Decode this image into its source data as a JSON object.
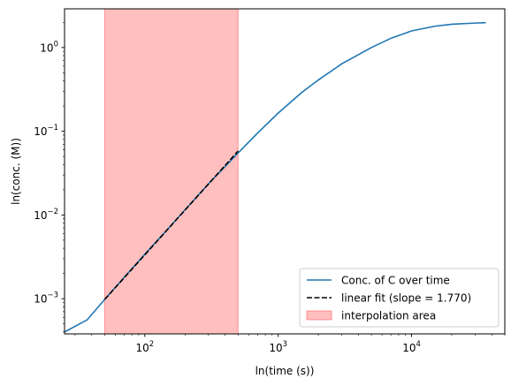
{
  "chart_data": {
    "type": "line",
    "xscale": "log",
    "yscale": "log",
    "xlabel": "ln(time (s))",
    "ylabel": "ln(conc. (M))",
    "xlim": [
      25,
      50000
    ],
    "ylim": [
      0.00038,
      2.9
    ],
    "grid": false,
    "legend_position": "lower-right",
    "x_ticks": [
      {
        "value": 100,
        "base": "10",
        "exp": "2"
      },
      {
        "value": 1000,
        "base": "10",
        "exp": "3"
      },
      {
        "value": 10000,
        "base": "10",
        "exp": "4"
      }
    ],
    "y_ticks": [
      {
        "value": 0.001,
        "base": "10",
        "exp": "−3"
      },
      {
        "value": 0.01,
        "base": "10",
        "exp": "−2"
      },
      {
        "value": 0.1,
        "base": "10",
        "exp": "−1"
      },
      {
        "value": 1,
        "base": "10",
        "exp": "0"
      }
    ],
    "series": [
      {
        "name": "Conc. of C over time",
        "style": "solid",
        "color": "#1f77b4",
        "x": [
          25,
          37,
          50,
          70,
          100,
          150,
          200,
          300,
          400,
          500,
          700,
          1000,
          1500,
          2000,
          3000,
          5000,
          7000,
          10000,
          15000,
          20000,
          30000,
          36000
        ],
        "y": [
          0.0004,
          0.00056,
          0.00098,
          0.0018,
          0.0034,
          0.0069,
          0.0115,
          0.0235,
          0.038,
          0.055,
          0.095,
          0.165,
          0.29,
          0.41,
          0.64,
          1.0,
          1.29,
          1.58,
          1.8,
          1.9,
          1.96,
          1.98
        ]
      },
      {
        "name": "linear fit (slope = 1.770)",
        "style": "dashed",
        "color": "#000000",
        "x": [
          50,
          500
        ],
        "y": [
          0.00098,
          0.058
        ]
      }
    ],
    "shaded_regions": [
      {
        "name": "interpolation area",
        "x_start": 50,
        "x_end": 500,
        "color": "#ff0000",
        "alpha": 0.25
      }
    ]
  }
}
